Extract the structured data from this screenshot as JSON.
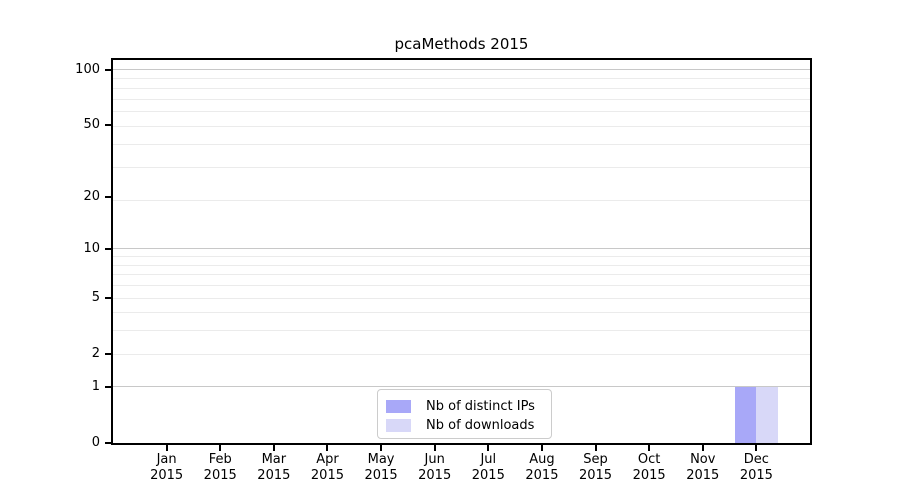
{
  "title": "pcaMethods 2015",
  "chart_data": {
    "type": "bar",
    "title": "pcaMethods 2015",
    "x_categories": [
      "Jan",
      "Feb",
      "Mar",
      "Apr",
      "May",
      "Jun",
      "Jul",
      "Aug",
      "Sep",
      "Oct",
      "Nov",
      "Dec"
    ],
    "x_year": "2015",
    "series": [
      {
        "name": "Nb of distinct IPs",
        "color": "#a8a8f8",
        "values": [
          0,
          0,
          0,
          0,
          0,
          0,
          0,
          0,
          0,
          0,
          0,
          1
        ]
      },
      {
        "name": "Nb of downloads",
        "color": "#d8d8f8",
        "values": [
          0,
          0,
          0,
          0,
          0,
          0,
          0,
          0,
          0,
          0,
          0,
          1
        ]
      }
    ],
    "y_scale": "log10(1+x)",
    "y_ticks": [
      0,
      1,
      2,
      5,
      10,
      20,
      50,
      100
    ],
    "y_max": 113,
    "grid_major_values": [
      1,
      10,
      100
    ],
    "grid_minor_positions": [
      3,
      4,
      5,
      6,
      7,
      8,
      9,
      10,
      20,
      30,
      40,
      50,
      60,
      70,
      80,
      90
    ],
    "colors": {
      "grid_major": "#c8c8c8",
      "grid_minor": "#ebebeb",
      "axis": "#000000"
    },
    "legend_position": "lower-center"
  }
}
